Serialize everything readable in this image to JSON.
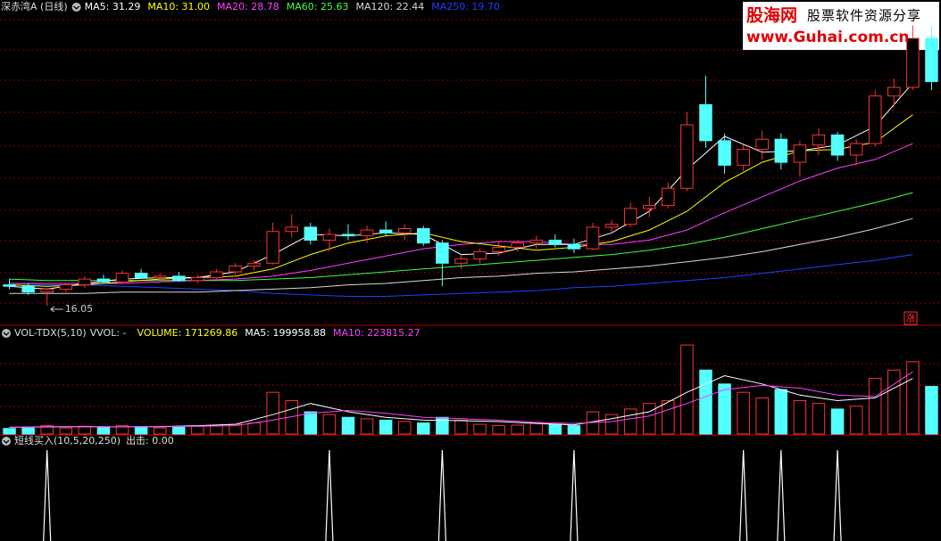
{
  "watermark": {
    "name": "股海网",
    "slogan": "股票软件资源分享",
    "url": "www.Guhai.com.cn"
  },
  "chart_data": [
    {
      "type": "candlestick",
      "title": "深赤湾A (日线)",
      "badge": "涨",
      "xlim": [
        -0.5,
        49.5
      ],
      "ylim": [
        15,
        35.9
      ],
      "up_color": "#ff3232",
      "down_color": "#54ffff",
      "open": [
        17.5,
        17.4,
        17.0,
        17.2,
        17.5,
        17.9,
        17.7,
        18.3,
        18.0,
        18.1,
        17.8,
        18.0,
        18.4,
        18.8,
        19.0,
        21.2,
        21.5,
        20.6,
        21.0,
        20.9,
        21.3,
        21.1,
        21.4,
        20.4,
        19.0,
        19.3,
        19.8,
        20.1,
        20.4,
        20.6,
        20.3,
        20.0,
        21.5,
        21.7,
        22.8,
        23.0,
        24.2,
        30.0,
        27.5,
        25.8,
        26.9,
        27.6,
        26.0,
        27.2,
        27.9,
        26.5,
        27.3,
        30.6,
        31.2,
        34.6
      ],
      "high": [
        17.9,
        17.6,
        17.3,
        17.6,
        18.1,
        18.2,
        18.5,
        18.6,
        18.3,
        18.4,
        18.2,
        18.6,
        19.0,
        19.2,
        21.8,
        22.4,
        21.8,
        21.4,
        21.7,
        21.6,
        21.9,
        21.7,
        21.6,
        20.6,
        19.6,
        20.0,
        20.5,
        20.6,
        20.9,
        21.0,
        20.7,
        21.8,
        22.0,
        23.2,
        23.6,
        24.6,
        29.5,
        32.0,
        28.0,
        27.2,
        28.2,
        28.0,
        27.5,
        28.4,
        28.1,
        27.6,
        31.0,
        31.8,
        35.5,
        35.4
      ],
      "low": [
        17.2,
        16.8,
        16.05,
        17.0,
        17.3,
        17.6,
        17.6,
        17.9,
        17.8,
        17.7,
        17.6,
        17.9,
        18.2,
        18.5,
        18.9,
        20.8,
        20.3,
        19.8,
        20.6,
        20.4,
        20.9,
        20.6,
        20.2,
        17.4,
        18.6,
        19.0,
        19.5,
        19.8,
        20.0,
        20.1,
        19.7,
        19.9,
        21.0,
        21.5,
        22.2,
        22.8,
        24.0,
        27.0,
        25.2,
        25.4,
        26.2,
        25.5,
        25.0,
        26.5,
        26.1,
        25.8,
        27.1,
        29.8,
        31.0,
        31.0
      ],
      "close": [
        17.4,
        17.0,
        17.2,
        17.5,
        17.9,
        17.7,
        18.3,
        18.0,
        18.1,
        17.8,
        18.0,
        18.4,
        18.8,
        19.0,
        21.2,
        21.5,
        20.6,
        21.0,
        20.9,
        21.3,
        21.1,
        21.4,
        20.4,
        19.0,
        19.3,
        19.8,
        20.1,
        20.4,
        20.6,
        20.3,
        20.0,
        21.5,
        21.7,
        22.8,
        23.0,
        24.2,
        28.6,
        27.5,
        25.8,
        26.9,
        27.6,
        26.0,
        27.2,
        27.9,
        26.5,
        27.3,
        30.6,
        31.2,
        34.6,
        31.6
      ],
      "annotations": [
        {
          "text": "16.05",
          "x": 2,
          "y": 16.05
        }
      ],
      "series": [
        {
          "label": "MA5: 31.29",
          "color": "#ffffff",
          "x": [
            0,
            2,
            4,
            6,
            8,
            10,
            12,
            14,
            16,
            18,
            20,
            22,
            24,
            26,
            28,
            30,
            32,
            34,
            36,
            38,
            40,
            42,
            44,
            46,
            48
          ],
          "values": [
            17.4,
            17.2,
            17.6,
            17.9,
            18.0,
            18.0,
            18.4,
            19.6,
            21.0,
            20.9,
            21.1,
            21.0,
            19.6,
            19.7,
            20.3,
            20.3,
            21.1,
            22.6,
            25.5,
            27.8,
            26.7,
            26.8,
            27.2,
            28.5,
            31.5
          ]
        },
        {
          "label": "MA10: 31.00",
          "color": "#ffff00",
          "x": [
            0,
            2,
            4,
            6,
            8,
            10,
            12,
            14,
            16,
            18,
            20,
            22,
            24,
            26,
            28,
            30,
            32,
            34,
            36,
            38,
            40,
            42,
            44,
            46,
            48
          ],
          "values": [
            17.5,
            17.4,
            17.5,
            17.7,
            17.9,
            18.0,
            18.1,
            18.6,
            19.6,
            20.4,
            20.9,
            21.1,
            20.5,
            20.2,
            19.9,
            20.1,
            20.5,
            21.3,
            22.6,
            24.6,
            26.0,
            26.8,
            26.9,
            27.4,
            29.3
          ]
        },
        {
          "label": "MA20: 28.78",
          "color": "#ff40ff",
          "x": [
            0,
            2,
            4,
            6,
            8,
            10,
            12,
            14,
            16,
            18,
            20,
            22,
            24,
            26,
            28,
            30,
            32,
            34,
            36,
            38,
            40,
            42,
            44,
            46,
            48
          ],
          "values": [
            17.6,
            17.6,
            17.6,
            17.6,
            17.7,
            17.8,
            17.9,
            18.1,
            18.5,
            19.0,
            19.5,
            20.0,
            20.3,
            20.5,
            20.5,
            20.3,
            20.3,
            20.6,
            21.3,
            22.5,
            23.6,
            24.7,
            25.6,
            26.2,
            27.3
          ]
        },
        {
          "label": "MA60: 25.63",
          "color": "#40ff40",
          "x": [
            0,
            2,
            4,
            6,
            8,
            10,
            12,
            14,
            16,
            18,
            20,
            22,
            24,
            26,
            28,
            30,
            32,
            34,
            36,
            38,
            40,
            42,
            44,
            46,
            48
          ],
          "values": [
            17.9,
            17.8,
            17.8,
            17.8,
            17.8,
            17.8,
            17.8,
            17.9,
            18.0,
            18.2,
            18.4,
            18.6,
            18.8,
            19.0,
            19.2,
            19.4,
            19.6,
            19.9,
            20.3,
            20.8,
            21.4,
            22.0,
            22.6,
            23.2,
            23.9
          ]
        },
        {
          "label": "MA120: 22.44",
          "color": "#d8d8d8",
          "x": [
            0,
            2,
            4,
            6,
            8,
            10,
            12,
            14,
            16,
            18,
            20,
            22,
            24,
            26,
            28,
            30,
            32,
            34,
            36,
            38,
            40,
            42,
            44,
            46,
            48
          ],
          "values": [
            16.9,
            16.9,
            16.9,
            17.0,
            17.0,
            17.0,
            17.1,
            17.2,
            17.3,
            17.5,
            17.6,
            17.8,
            18.0,
            18.1,
            18.3,
            18.4,
            18.6,
            18.8,
            19.1,
            19.4,
            19.8,
            20.3,
            20.8,
            21.4,
            22.1
          ]
        },
        {
          "label": "MA250: 19.70",
          "color": "#2040ff",
          "x": [
            0,
            2,
            4,
            6,
            8,
            10,
            12,
            14,
            16,
            18,
            20,
            22,
            24,
            26,
            28,
            30,
            32,
            34,
            36,
            38,
            40,
            42,
            44,
            46,
            48
          ],
          "values": [
            17.6,
            17.5,
            17.5,
            17.4,
            17.3,
            17.2,
            17.1,
            16.9,
            16.8,
            16.7,
            16.7,
            16.8,
            16.9,
            17.0,
            17.1,
            17.3,
            17.4,
            17.6,
            17.8,
            18.0,
            18.3,
            18.6,
            18.9,
            19.2,
            19.6
          ]
        }
      ]
    },
    {
      "type": "bar",
      "title": "VOL-TDX(5,10)",
      "subtitle": "VVOL: -",
      "xlim": [
        -0.5,
        49.5
      ],
      "ylim": [
        0,
        330000
      ],
      "up_color": "#ff3232",
      "down_color": "#54ffff",
      "bars": {
        "label": "VOLUME: 171269.86",
        "color": "#ffff00",
        "values": [
          20000,
          25000,
          30000,
          22000,
          28000,
          24000,
          30000,
          26000,
          22000,
          25000,
          28000,
          30000,
          35000,
          40000,
          150000,
          120000,
          80000,
          70000,
          60000,
          55000,
          50000,
          45000,
          40000,
          60000,
          50000,
          35000,
          30000,
          32000,
          40000,
          35000,
          30000,
          80000,
          70000,
          90000,
          110000,
          120000,
          320000,
          230000,
          180000,
          150000,
          130000,
          160000,
          120000,
          110000,
          90000,
          100000,
          200000,
          230000,
          260000,
          171269.86
        ]
      },
      "series": [
        {
          "label": "MA5: 199958.88",
          "color": "#ffffff",
          "x": [
            0,
            2,
            4,
            6,
            8,
            10,
            12,
            14,
            16,
            18,
            20,
            22,
            24,
            26,
            28,
            30,
            32,
            34,
            36,
            38,
            40,
            42,
            44,
            46,
            48
          ],
          "values": [
            24000,
            26000,
            27000,
            26000,
            27000,
            30000,
            35000,
            70000,
            110000,
            80000,
            60000,
            50000,
            48000,
            45000,
            38000,
            33000,
            55000,
            80000,
            150000,
            210000,
            180000,
            140000,
            120000,
            130000,
            199958.88
          ]
        },
        {
          "label": "MA10: 223815.27",
          "color": "#ff40ff",
          "x": [
            0,
            2,
            4,
            6,
            8,
            10,
            12,
            14,
            16,
            18,
            20,
            22,
            24,
            26,
            28,
            30,
            32,
            34,
            36,
            38,
            40,
            42,
            44,
            46,
            48
          ],
          "values": [
            25000,
            25000,
            26000,
            26000,
            26000,
            28000,
            30000,
            50000,
            75000,
            85000,
            75000,
            60000,
            55000,
            50000,
            42000,
            38000,
            45000,
            65000,
            110000,
            160000,
            175000,
            165000,
            140000,
            135000,
            223815.27
          ]
        }
      ]
    },
    {
      "type": "spike",
      "title": "短线买入(10,5,20,250)",
      "xlim": [
        -0.5,
        49.5
      ],
      "ylim": [
        0,
        1
      ],
      "series": [
        {
          "label": "出击: 0.00",
          "color": "#ffffff",
          "x": [
            2,
            17,
            23,
            30,
            39,
            41,
            44
          ],
          "values": [
            1,
            1,
            1,
            1,
            1,
            1,
            1
          ]
        }
      ]
    }
  ]
}
